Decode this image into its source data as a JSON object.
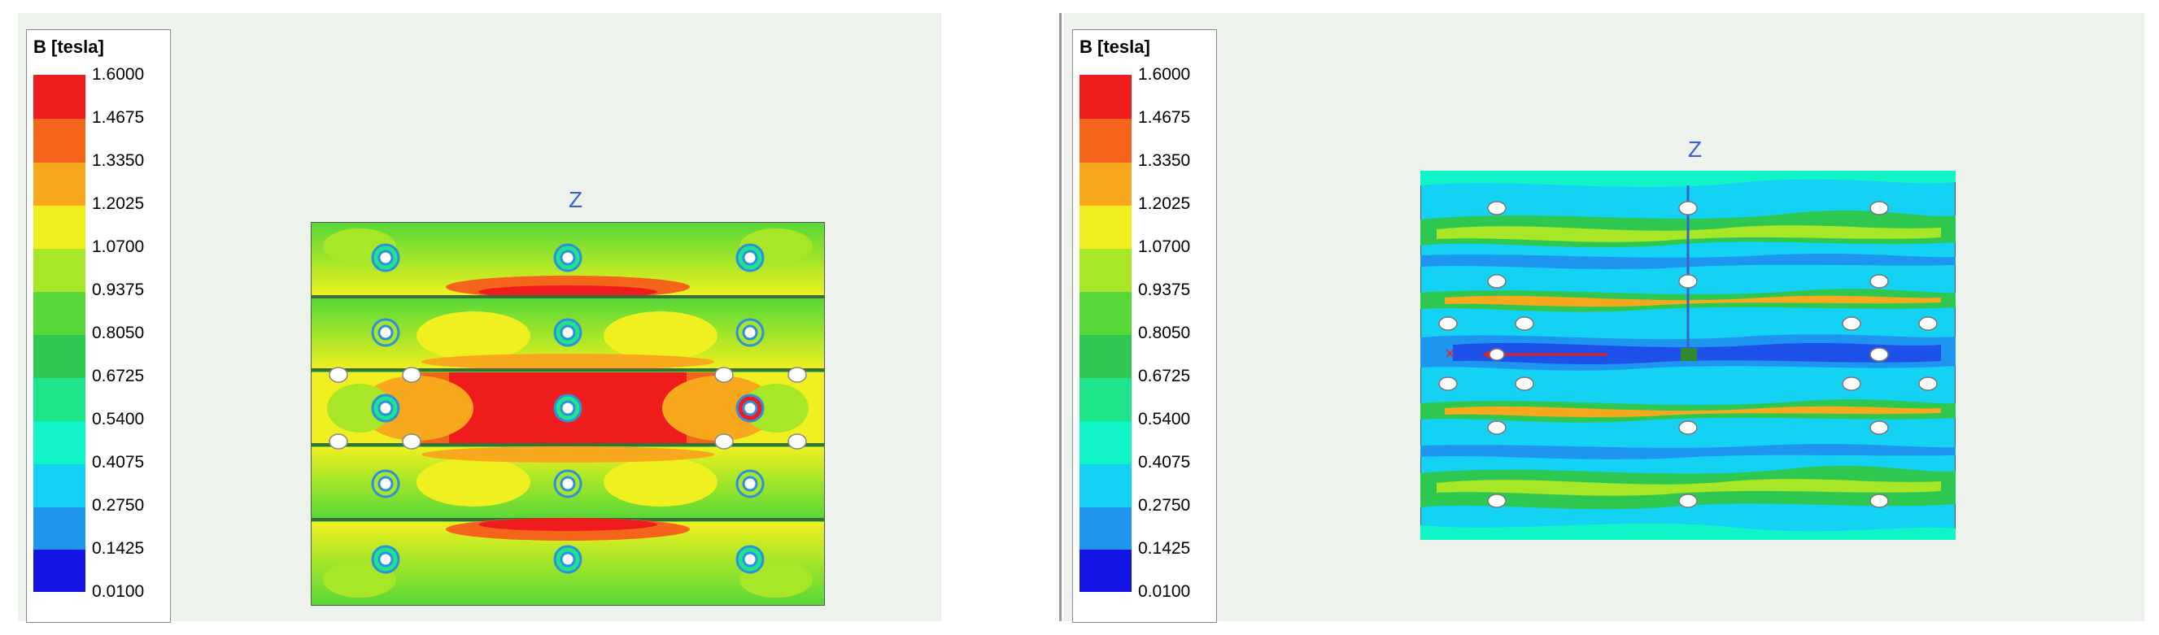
{
  "panels": [
    {
      "legend": {
        "title": "B [tesla]",
        "labels": [
          "1.6000",
          "1.4675",
          "1.3350",
          "1.2025",
          "1.0700",
          "0.9375",
          "0.8050",
          "0.6725",
          "0.5400",
          "0.4075",
          "0.2750",
          "0.1425",
          "0.0100"
        ]
      },
      "axis_label": "Z"
    },
    {
      "legend": {
        "title": "B [tesla]",
        "labels": [
          "1.6000",
          "1.4675",
          "1.3350",
          "1.2025",
          "1.0700",
          "0.9375",
          "0.8050",
          "0.6725",
          "0.5400",
          "0.4075",
          "0.2750",
          "0.1425",
          "0.0100"
        ]
      },
      "axis_label": "Z"
    }
  ],
  "colors": {
    "scale": [
      "#ee1c1c",
      "#f4641a",
      "#f8a81c",
      "#f0f020",
      "#a8e628",
      "#58d838",
      "#2ec850",
      "#1ee48c",
      "#10f4c8",
      "#14d2f4",
      "#1e96f0",
      "#1e50ea",
      "#1414e4"
    ],
    "hole": "#ffffff",
    "ring": "#2e8ee0",
    "axis": "#3a62c8"
  }
}
